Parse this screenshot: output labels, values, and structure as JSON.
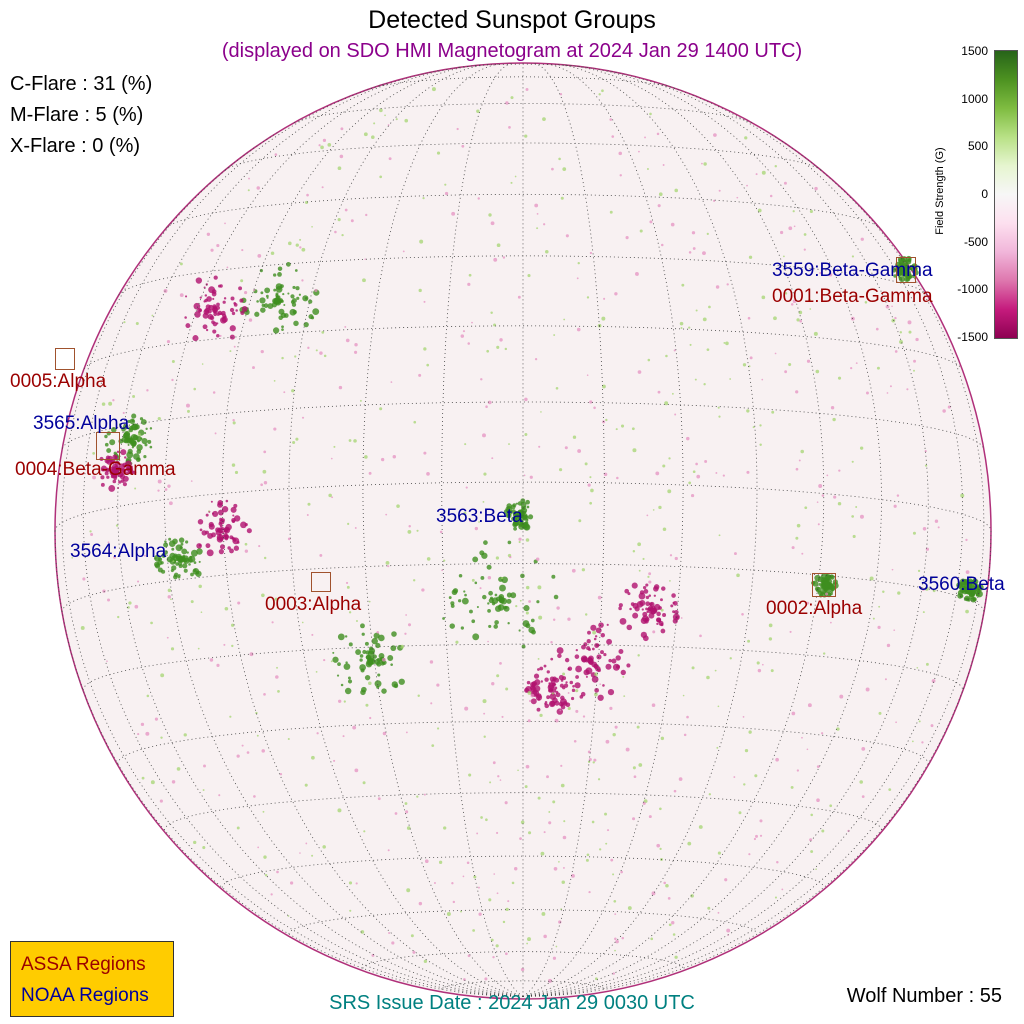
{
  "title": "Detected Sunspot Groups",
  "subtitle": "(displayed on SDO HMI Magnetogram at 2024 Jan 29 1400 UTC)",
  "flare_probabilities": [
    {
      "label": "C-Flare : 31 (%)"
    },
    {
      "label": "M-Flare :  5 (%)"
    },
    {
      "label": "X-Flare :  0 (%)"
    }
  ],
  "colorbar": {
    "label": "Field Strength (G)",
    "ticks": [
      "1500",
      "1000",
      "500",
      "0",
      "-500",
      "-1000",
      "-1500"
    ],
    "colors": {
      "positive": "#276419",
      "negative": "#8e0152"
    }
  },
  "assa_regions": [
    "0001:Beta-Gamma",
    "0002:Alpha",
    "0003:Alpha",
    "0004:Beta-Gamma",
    "0005:Alpha"
  ],
  "noaa_regions": [
    "3559:Beta-Gamma",
    "3560:Beta",
    "3563:Beta",
    "3564:Alpha",
    "3565:Alpha"
  ],
  "legend": {
    "assa": "ASSA Regions",
    "noaa": "NOAA Regions"
  },
  "srs": "SRS Issue Date : 2024 Jan 29 0030 UTC",
  "wolf": "Wolf Number : 55",
  "colors": {
    "assa": "#9b0000",
    "noaa": "#00009b",
    "legend_bg": "#ffcc00"
  }
}
